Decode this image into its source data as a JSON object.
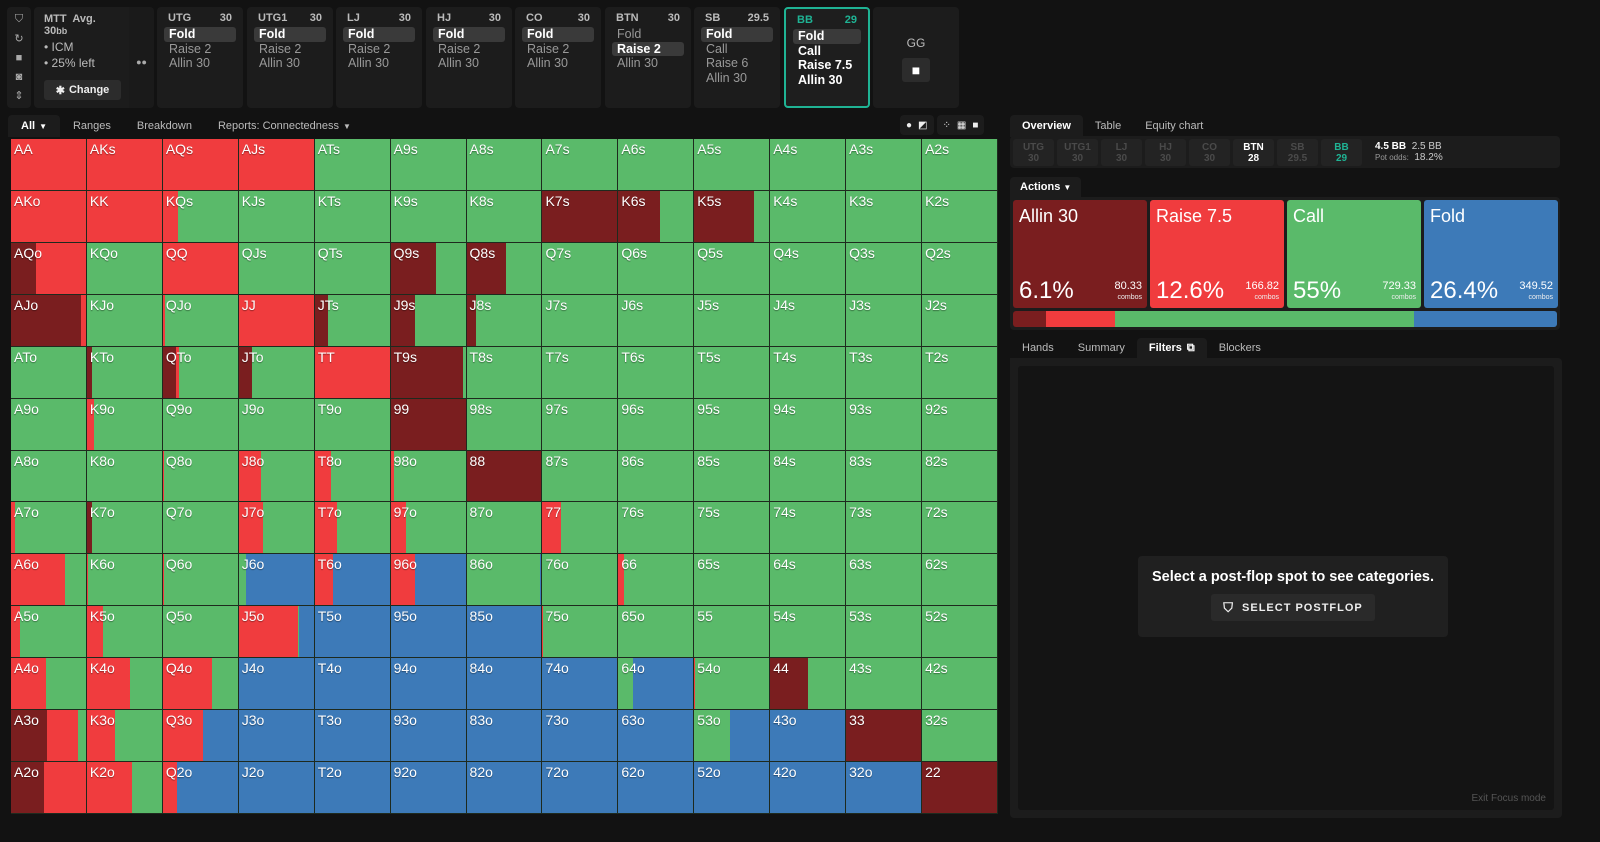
{
  "rail_icons": [
    "bookmark-icon",
    "reset-icon",
    "save-icon",
    "gamepad-icon",
    "expand-vertical-icon"
  ],
  "game_info": {
    "format": "MTT",
    "avg_label": "Avg. 30",
    "avg_unit": "bb",
    "bullets": [
      "• ICM",
      "• 25% left"
    ],
    "change_label": "Change"
  },
  "positions": [
    {
      "name": "UTG",
      "stack": "30",
      "actions": [
        "Fold",
        "Raise 2",
        "Allin 30"
      ],
      "selected": 0
    },
    {
      "name": "UTG1",
      "stack": "30",
      "actions": [
        "Fold",
        "Raise 2",
        "Allin 30"
      ],
      "selected": 0
    },
    {
      "name": "LJ",
      "stack": "30",
      "actions": [
        "Fold",
        "Raise 2",
        "Allin 30"
      ],
      "selected": 0
    },
    {
      "name": "HJ",
      "stack": "30",
      "actions": [
        "Fold",
        "Raise 2",
        "Allin 30"
      ],
      "selected": 0
    },
    {
      "name": "CO",
      "stack": "30",
      "actions": [
        "Fold",
        "Raise 2",
        "Allin 30"
      ],
      "selected": 0
    },
    {
      "name": "BTN",
      "stack": "30",
      "actions": [
        "Fold",
        "Raise 2",
        "Allin 30"
      ],
      "selected": 1
    },
    {
      "name": "SB",
      "stack": "29.5",
      "actions": [
        "Fold",
        "Call",
        "Raise 6",
        "Allin 30"
      ],
      "selected": 0
    },
    {
      "name": "BB",
      "stack": "29",
      "actions": [
        "Fold",
        "Call",
        "Raise 7.5",
        "Allin 30"
      ],
      "selected": 0,
      "active": true
    }
  ],
  "gg": {
    "label": "GG"
  },
  "left_tabs": [
    {
      "label": "All",
      "caret": true,
      "selected": true
    },
    {
      "label": "Ranges"
    },
    {
      "label": "Breakdown"
    },
    {
      "label": "Reports: Connectedness",
      "caret": true
    }
  ],
  "view_icons": [
    "suit-icon",
    "contrast-icon",
    "compact-icon",
    "grid-icon",
    "square-icon"
  ],
  "colors": {
    "allin": "#7a1e1f",
    "raise": "#f03c3e",
    "call": "#5aba6a",
    "fold": "#3d7ab8",
    "accent": "#1fb394"
  },
  "grid": {
    "ranks": [
      "A",
      "K",
      "Q",
      "J",
      "T",
      "9",
      "8",
      "7",
      "6",
      "5",
      "4",
      "3",
      "2"
    ],
    "mix_order": [
      "allin",
      "raise",
      "call",
      "fold"
    ],
    "cells": [
      [
        [
          0,
          1,
          0,
          0
        ],
        [
          0,
          1,
          0,
          0
        ],
        [
          0,
          1,
          0,
          0
        ],
        [
          0,
          1,
          0,
          0
        ],
        [
          0,
          0,
          1,
          0
        ],
        [
          0,
          0,
          1,
          0
        ],
        [
          0,
          0,
          1,
          0
        ],
        [
          0,
          0,
          1,
          0
        ],
        [
          0,
          0,
          1,
          0
        ],
        [
          0,
          0,
          1,
          0
        ],
        [
          0,
          0,
          1,
          0
        ],
        [
          0,
          0,
          1,
          0
        ],
        [
          0,
          0,
          1,
          0
        ]
      ],
      [
        [
          0,
          1,
          0,
          0
        ],
        [
          0,
          1,
          0,
          0
        ],
        [
          0,
          0.2,
          0.8,
          0
        ],
        [
          0,
          0,
          1,
          0
        ],
        [
          0,
          0,
          1,
          0
        ],
        [
          0,
          0,
          1,
          0
        ],
        [
          0,
          0,
          1,
          0
        ],
        [
          1,
          0,
          0,
          0
        ],
        [
          0.55,
          0,
          0.45,
          0
        ],
        [
          0.8,
          0,
          0.2,
          0
        ],
        [
          0,
          0,
          1,
          0
        ],
        [
          0,
          0,
          1,
          0
        ],
        [
          0,
          0,
          1,
          0
        ]
      ],
      [
        [
          0.33,
          0.67,
          0,
          0
        ],
        [
          0,
          0,
          1,
          0
        ],
        [
          0,
          1,
          0,
          0
        ],
        [
          0,
          0,
          1,
          0
        ],
        [
          0,
          0,
          1,
          0
        ],
        [
          0.6,
          0,
          0.4,
          0
        ],
        [
          0.53,
          0,
          0.47,
          0
        ],
        [
          0,
          0,
          1,
          0
        ],
        [
          0,
          0,
          1,
          0
        ],
        [
          0,
          0,
          1,
          0
        ],
        [
          0,
          0,
          1,
          0
        ],
        [
          0,
          0,
          1,
          0
        ],
        [
          0,
          0,
          1,
          0
        ]
      ],
      [
        [
          0.94,
          0.06,
          0,
          0
        ],
        [
          0,
          0,
          1,
          0
        ],
        [
          0,
          0.03,
          0.97,
          0
        ],
        [
          0,
          1,
          0,
          0
        ],
        [
          0.18,
          0,
          0.82,
          0
        ],
        [
          0.33,
          0,
          0.67,
          0
        ],
        [
          0.12,
          0,
          0.88,
          0
        ],
        [
          0,
          0,
          1,
          0
        ],
        [
          0,
          0,
          1,
          0
        ],
        [
          0,
          0,
          1,
          0
        ],
        [
          0,
          0,
          1,
          0
        ],
        [
          0,
          0,
          1,
          0
        ],
        [
          0,
          0,
          1,
          0
        ]
      ],
      [
        [
          0,
          0,
          1,
          0
        ],
        [
          0.07,
          0,
          0.93,
          0
        ],
        [
          0.18,
          0.04,
          0.78,
          0
        ],
        [
          0.18,
          0,
          0.82,
          0
        ],
        [
          0,
          1,
          0,
          0
        ],
        [
          0.96,
          0,
          0.04,
          0
        ],
        [
          0,
          0,
          1,
          0
        ],
        [
          0,
          0,
          1,
          0
        ],
        [
          0,
          0,
          1,
          0
        ],
        [
          0,
          0,
          1,
          0
        ],
        [
          0,
          0,
          1,
          0
        ],
        [
          0,
          0,
          1,
          0
        ],
        [
          0,
          0,
          1,
          0
        ]
      ],
      [
        [
          0,
          0,
          1,
          0
        ],
        [
          0,
          0.09,
          0.91,
          0
        ],
        [
          0,
          0,
          1,
          0
        ],
        [
          0,
          0,
          1,
          0
        ],
        [
          0,
          0,
          1,
          0
        ],
        [
          1,
          0,
          0,
          0
        ],
        [
          0,
          0,
          1,
          0
        ],
        [
          0,
          0,
          1,
          0
        ],
        [
          0,
          0,
          1,
          0
        ],
        [
          0,
          0,
          1,
          0
        ],
        [
          0,
          0,
          1,
          0
        ],
        [
          0,
          0,
          1,
          0
        ],
        [
          0,
          0,
          1,
          0
        ]
      ],
      [
        [
          0,
          0,
          1,
          0
        ],
        [
          0,
          0,
          1,
          0
        ],
        [
          0,
          0.01,
          0.99,
          0
        ],
        [
          0,
          0.3,
          0.7,
          0
        ],
        [
          0,
          0.22,
          0.78,
          0
        ],
        [
          0,
          0.04,
          0.96,
          0
        ],
        [
          1,
          0,
          0,
          0
        ],
        [
          0,
          0,
          1,
          0
        ],
        [
          0,
          0,
          1,
          0
        ],
        [
          0,
          0,
          1,
          0
        ],
        [
          0,
          0,
          1,
          0
        ],
        [
          0,
          0,
          1,
          0
        ],
        [
          0,
          0,
          1,
          0
        ]
      ],
      [
        [
          0,
          0.06,
          0.94,
          0
        ],
        [
          0.07,
          0,
          0.93,
          0
        ],
        [
          0,
          0,
          1,
          0
        ],
        [
          0,
          0.32,
          0.68,
          0
        ],
        [
          0,
          0.3,
          0.7,
          0
        ],
        [
          0,
          0.21,
          0.79,
          0
        ],
        [
          0,
          0,
          1,
          0
        ],
        [
          0,
          0.25,
          0.75,
          0
        ],
        [
          0,
          0,
          1,
          0
        ],
        [
          0,
          0,
          1,
          0
        ],
        [
          0,
          0,
          1,
          0
        ],
        [
          0,
          0,
          1,
          0
        ],
        [
          0,
          0,
          1,
          0
        ]
      ],
      [
        [
          0,
          0.72,
          0.28,
          0
        ],
        [
          0,
          0.01,
          0.99,
          0
        ],
        [
          0,
          0.01,
          0.99,
          0
        ],
        [
          0,
          0,
          0.1,
          0.9
        ],
        [
          0,
          0.24,
          0,
          0.76
        ],
        [
          0,
          0.32,
          0,
          0.68
        ],
        [
          0,
          0,
          0.98,
          0.02
        ],
        [
          0,
          0,
          1,
          0
        ],
        [
          0,
          0.08,
          0.92,
          0
        ],
        [
          0,
          0,
          1,
          0
        ],
        [
          0,
          0,
          1,
          0
        ],
        [
          0,
          0,
          1,
          0
        ],
        [
          0,
          0,
          1,
          0
        ]
      ],
      [
        [
          0,
          0.12,
          0.88,
          0
        ],
        [
          0,
          0.22,
          0.78,
          0
        ],
        [
          0,
          0,
          1,
          0
        ],
        [
          0,
          0.79,
          0.01,
          0.2
        ],
        [
          0,
          0,
          0,
          1
        ],
        [
          0,
          0,
          0,
          1
        ],
        [
          0,
          0,
          0,
          1
        ],
        [
          0,
          0.01,
          0.99,
          0
        ],
        [
          0,
          0,
          1,
          0
        ],
        [
          0,
          0,
          1,
          0
        ],
        [
          0,
          0,
          1,
          0
        ],
        [
          0,
          0,
          1,
          0
        ],
        [
          0,
          0,
          1,
          0
        ]
      ],
      [
        [
          0,
          0.47,
          0.53,
          0
        ],
        [
          0,
          0.57,
          0.43,
          0
        ],
        [
          0,
          0.66,
          0.34,
          0
        ],
        [
          0,
          0,
          0,
          1
        ],
        [
          0,
          0,
          0,
          1
        ],
        [
          0,
          0,
          0,
          1
        ],
        [
          0,
          0,
          0,
          1
        ],
        [
          0,
          0,
          0,
          1
        ],
        [
          0,
          0,
          0.2,
          0.8
        ],
        [
          0,
          0.01,
          0.99,
          0
        ],
        [
          0.5,
          0,
          0.5,
          0
        ],
        [
          0,
          0,
          1,
          0
        ],
        [
          0,
          0,
          1,
          0
        ]
      ],
      [
        [
          0.48,
          0.42,
          0.1,
          0
        ],
        [
          0,
          0.38,
          0.62,
          0
        ],
        [
          0,
          0.53,
          0,
          0.47
        ],
        [
          0,
          0,
          0,
          1
        ],
        [
          0,
          0,
          0,
          1
        ],
        [
          0,
          0,
          0,
          1
        ],
        [
          0,
          0,
          0,
          1
        ],
        [
          0,
          0,
          0,
          1
        ],
        [
          0,
          0,
          0,
          1
        ],
        [
          0,
          0,
          0.47,
          0.53
        ],
        [
          0,
          0,
          0,
          1
        ],
        [
          1,
          0,
          0,
          0
        ],
        [
          0,
          0,
          1,
          0
        ]
      ],
      [
        [
          0.44,
          0.56,
          0,
          0
        ],
        [
          0,
          0.6,
          0.4,
          0
        ],
        [
          0,
          0.19,
          0,
          0.81
        ],
        [
          0,
          0,
          0,
          1
        ],
        [
          0,
          0,
          0,
          1
        ],
        [
          0,
          0,
          0,
          1
        ],
        [
          0,
          0,
          0,
          1
        ],
        [
          0,
          0,
          0,
          1
        ],
        [
          0,
          0,
          0,
          1
        ],
        [
          0,
          0,
          0,
          1
        ],
        [
          0,
          0,
          0,
          1
        ],
        [
          0,
          0,
          0,
          1
        ],
        [
          1,
          0,
          0,
          0
        ]
      ]
    ]
  },
  "right_tabs": [
    {
      "label": "Overview",
      "selected": true
    },
    {
      "label": "Table"
    },
    {
      "label": "Equity chart"
    }
  ],
  "pos_bar": [
    {
      "name": "UTG",
      "stack": "30"
    },
    {
      "name": "UTG1",
      "stack": "30"
    },
    {
      "name": "LJ",
      "stack": "30"
    },
    {
      "name": "HJ",
      "stack": "30"
    },
    {
      "name": "CO",
      "stack": "30"
    },
    {
      "name": "BTN",
      "stack": "28",
      "state": "hi"
    },
    {
      "name": "SB",
      "stack": "29.5"
    },
    {
      "name": "BB",
      "stack": "29",
      "state": "act"
    }
  ],
  "pot": {
    "pot": "4.5 BB",
    "to_call": "2.5 BB",
    "odds_label": "Pot odds:",
    "odds": "18.2%"
  },
  "actions_tab": {
    "label": "Actions"
  },
  "actions": [
    {
      "key": "allin",
      "name": "Allin 30",
      "pct": "6.1%",
      "combos": "80.33",
      "combos_label": "combos",
      "freq": 6.1
    },
    {
      "key": "raise",
      "name": "Raise 7.5",
      "pct": "12.6%",
      "combos": "166.82",
      "combos_label": "combos",
      "freq": 12.6
    },
    {
      "key": "call",
      "name": "Call",
      "pct": "55%",
      "combos": "729.33",
      "combos_label": "combos",
      "freq": 55
    },
    {
      "key": "fold",
      "name": "Fold",
      "pct": "26.4%",
      "combos": "349.52",
      "combos_label": "combos",
      "freq": 26.4
    }
  ],
  "sub_tabs": [
    {
      "label": "Hands"
    },
    {
      "label": "Summary"
    },
    {
      "label": "Filters",
      "selected": true,
      "icon": "copy-icon"
    },
    {
      "label": "Blockers"
    }
  ],
  "filters": {
    "message": "Select a post-flop spot to see categories.",
    "button": "SELECT POSTFLOP"
  },
  "exit_focus": "Exit Focus mode"
}
